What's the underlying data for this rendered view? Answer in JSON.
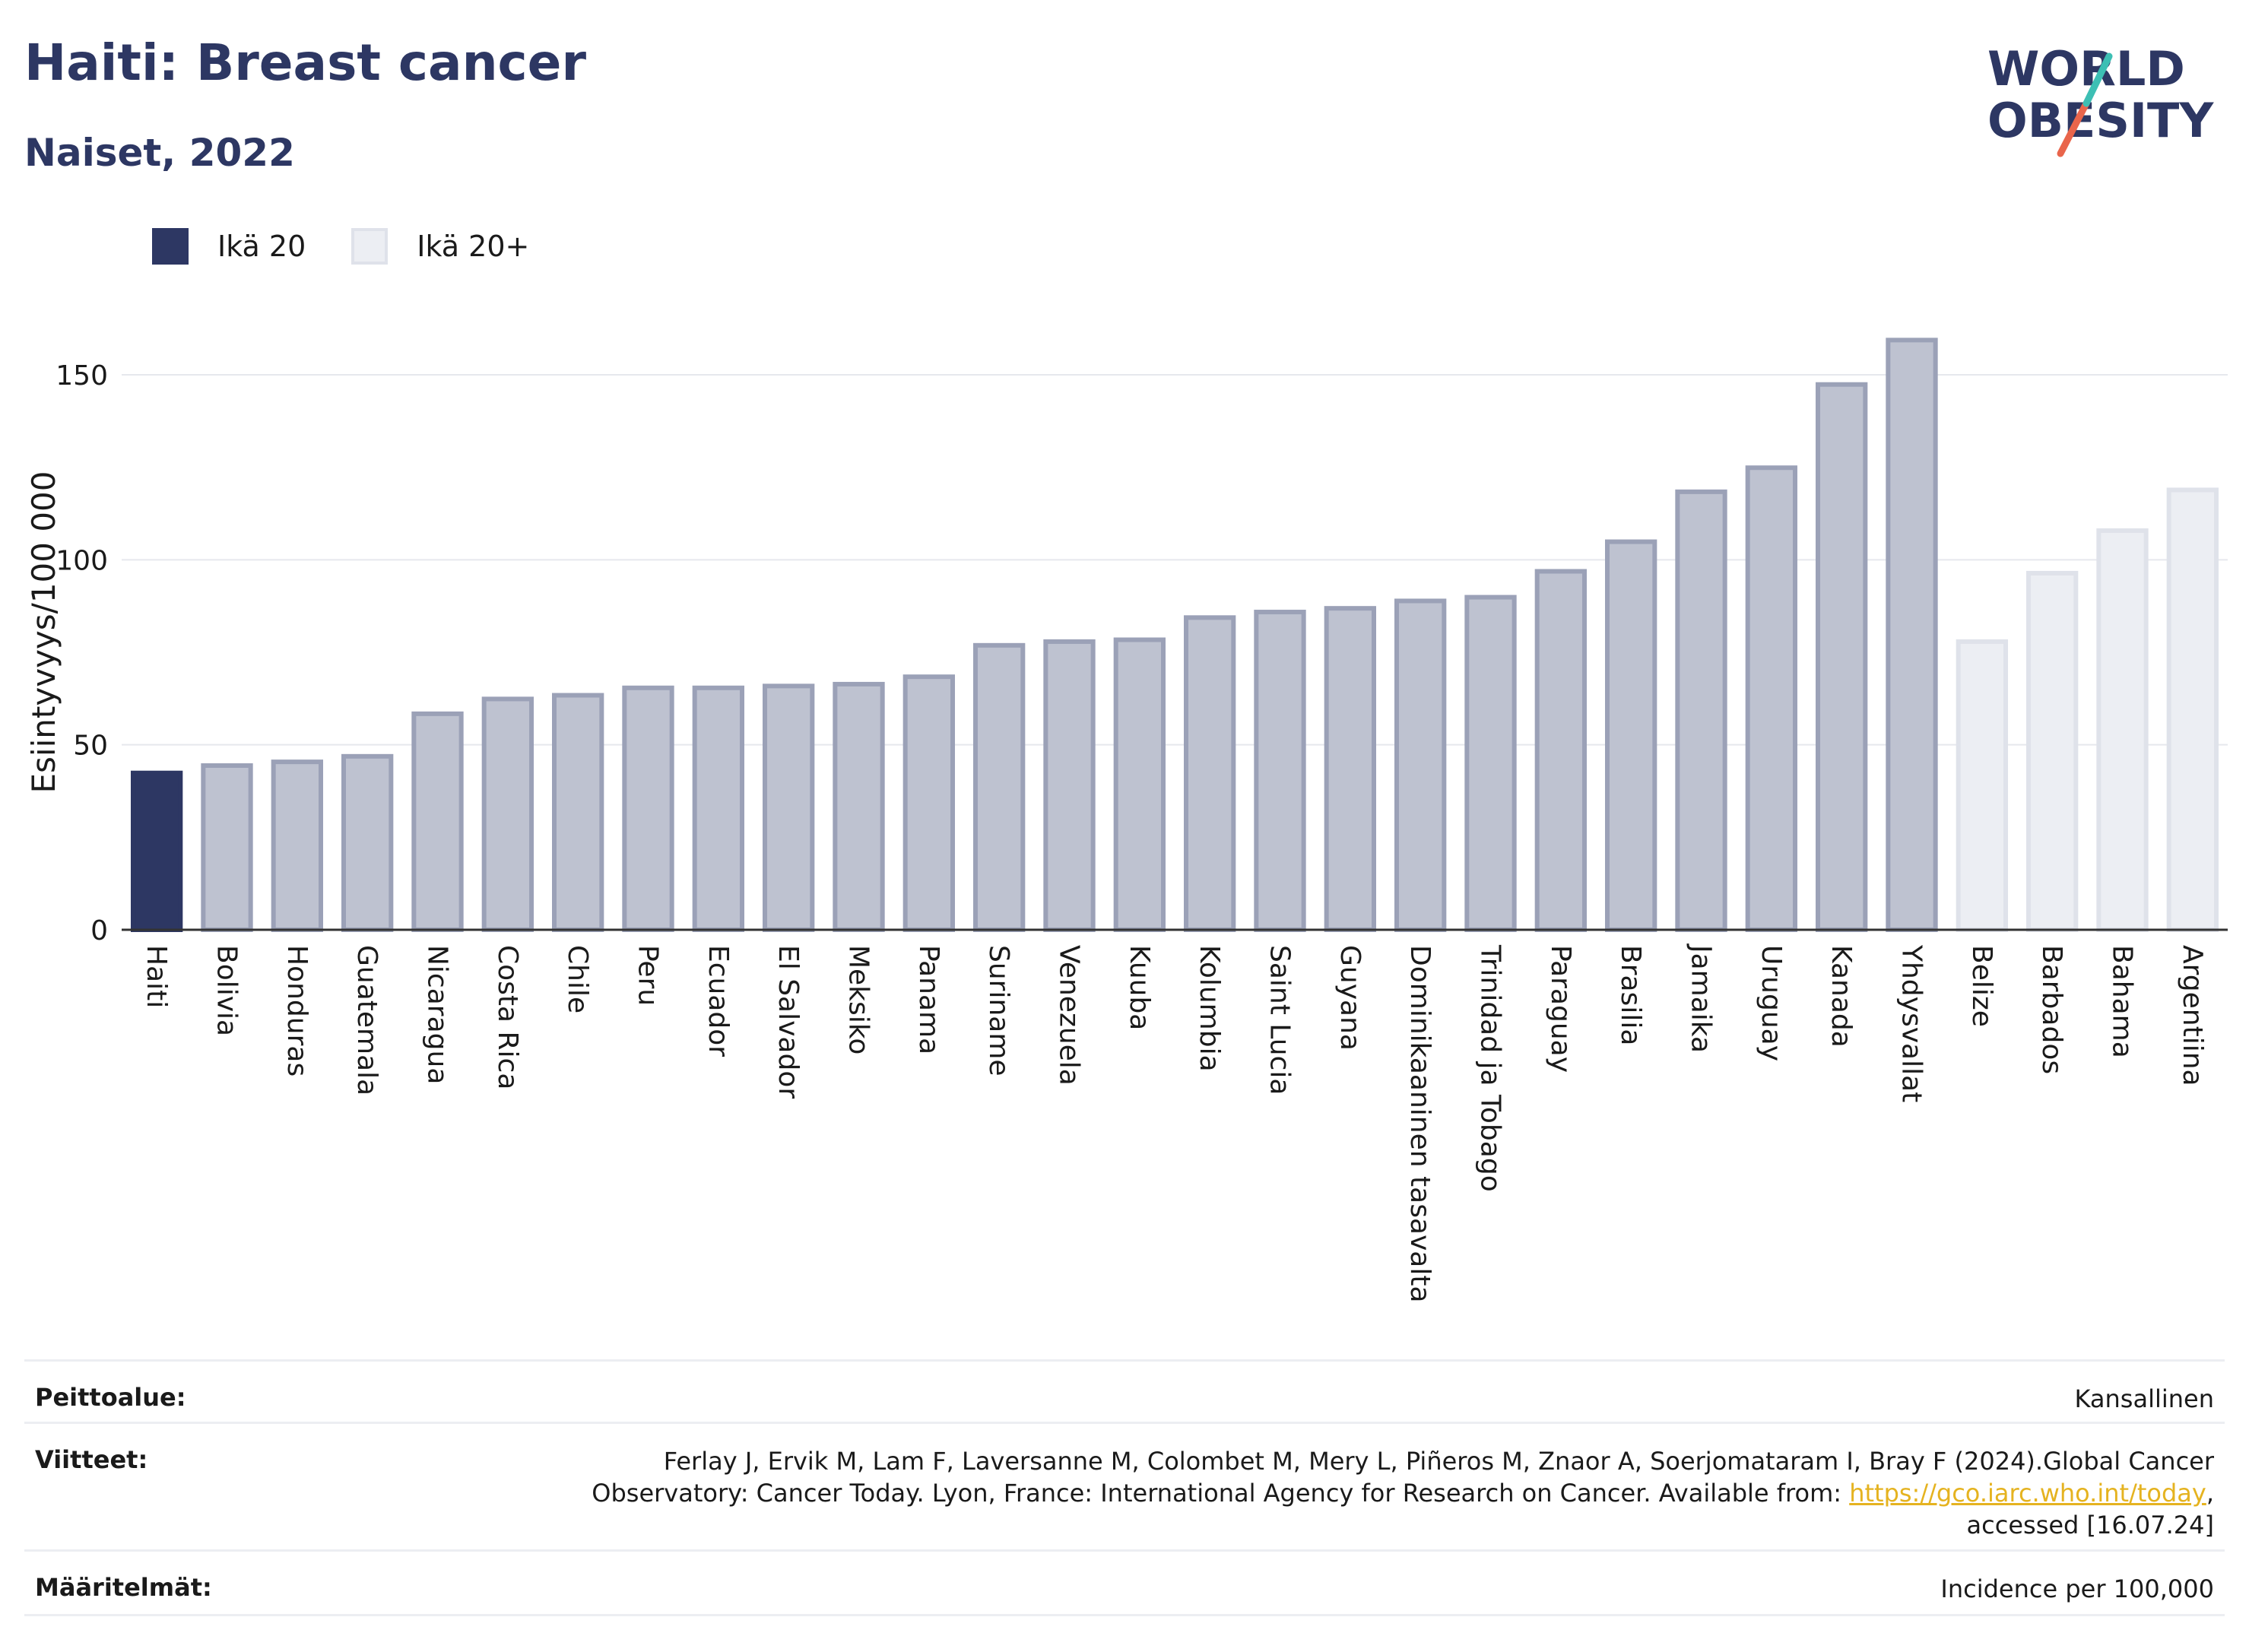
{
  "header": {
    "title": "Haiti: Breast cancer",
    "subtitle": "Naiset, 2022"
  },
  "logo": {
    "line1": "WORLD",
    "line2": "OBESITY",
    "accent_colors": [
      "#3dbfb4",
      "#e9654b"
    ]
  },
  "legend": [
    {
      "label": "Ikä 20",
      "color": "#2d3763"
    },
    {
      "label": "Ikä 20+",
      "color": "#eceef3"
    }
  ],
  "chart_data": {
    "type": "bar",
    "ylabel": "Esiintyvyys/100 000",
    "ylim": [
      0,
      165
    ],
    "yticks": [
      0,
      50,
      100,
      150
    ],
    "grid": true,
    "legend_position": "top-left",
    "categories": [
      "Haiti",
      "Bolivia",
      "Honduras",
      "Guatemala",
      "Nicaragua",
      "Costa Rica",
      "Chile",
      "Peru",
      "Ecuador",
      "El Salvador",
      "Meksiko",
      "Panama",
      "Suriname",
      "Venezuela",
      "Kuuba",
      "Kolumbia",
      "Saint Lucia",
      "Guyana",
      "Dominikaaninen tasavalta",
      "Trinidad ja Tobago",
      "Paraguay",
      "Brasilia",
      "Jamaika",
      "Uruguay",
      "Kanada",
      "Yhdysvallat",
      "Belize",
      "Barbados",
      "Bahama",
      "Argentiina"
    ],
    "values": [
      43,
      45,
      46,
      47.5,
      59,
      63,
      64,
      66,
      66,
      66.5,
      67,
      69,
      77.5,
      78.5,
      79,
      85,
      86.5,
      87.5,
      89.5,
      90.5,
      97.5,
      105.5,
      119,
      125.5,
      148,
      160,
      78.5,
      97,
      108.5,
      119.5
    ],
    "bar_styles": [
      "highlight",
      "mid",
      "mid",
      "mid",
      "mid",
      "mid",
      "mid",
      "mid",
      "mid",
      "mid",
      "mid",
      "mid",
      "mid",
      "mid",
      "mid",
      "mid",
      "mid",
      "mid",
      "mid",
      "mid",
      "mid",
      "mid",
      "mid",
      "mid",
      "mid",
      "mid",
      "light",
      "light",
      "light",
      "light"
    ],
    "colors": {
      "highlight": "#2d3763",
      "mid_fill": "#bec2d0",
      "mid_stroke": "#9ba1b7",
      "light_fill": "#eceef3",
      "light_stroke": "#dfe2ea",
      "grid": "#e6e8ed",
      "axis": "#333333"
    }
  },
  "meta": {
    "coverage_key": "Peittoalue:",
    "coverage_val": "Kansallinen",
    "refs_key": "Viitteet:",
    "refs_line1": "Ferlay J, Ervik M, Lam F, Laversanne M, Colombet M, Mery L, Piñeros M, Znaor A, Soerjomataram I, Bray F (2024).Global Cancer",
    "refs_line2_pre": "Observatory: Cancer Today. Lyon, France: International Agency for Research on Cancer. Available from: ",
    "refs_link": "https://gco.iarc.who.int/today",
    "refs_line2_post": ",",
    "refs_line3": "accessed [16.07.24]",
    "defs_key": "Määritelmät:",
    "defs_val": "Incidence per 100,000"
  }
}
